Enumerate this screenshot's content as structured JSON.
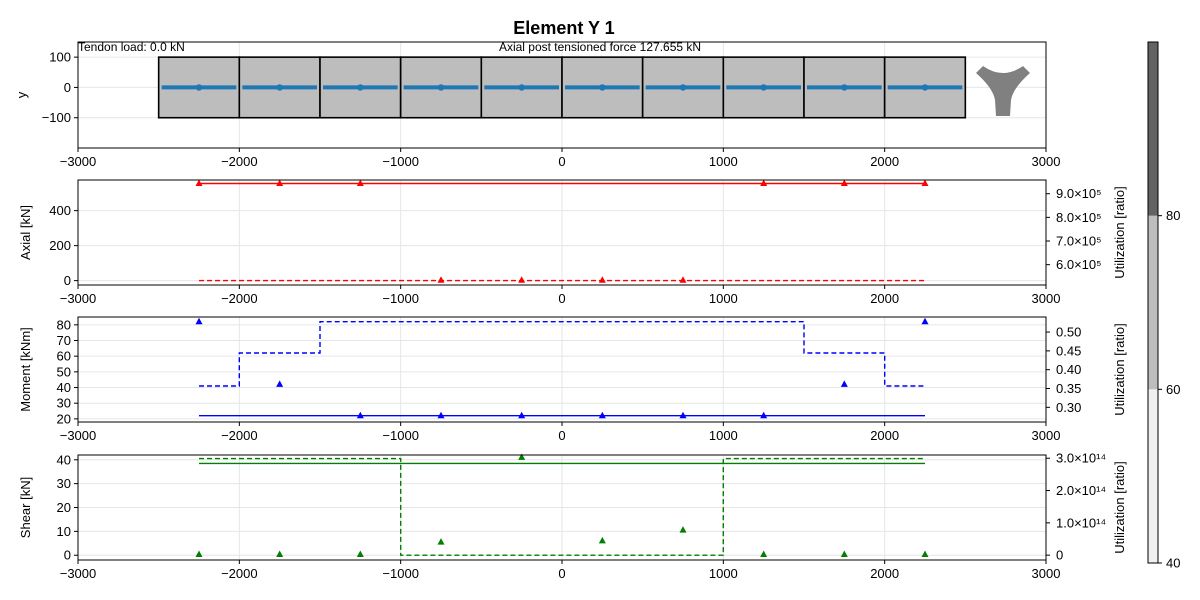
{
  "title": "Element Y 1",
  "annotations": {
    "tendon_load": "Tendon load: 0.0 kN",
    "axial_post_tension": "Axial post tensioned force 127.655 kN"
  },
  "colors": {
    "section_fill": "#bdbdbd",
    "tendon": "#1f77b4",
    "axial": "#ff0000",
    "moment": "#0000ff",
    "shear": "#008000",
    "cross_section": "#808080"
  },
  "chart_data": [
    {
      "id": "section",
      "type": "line",
      "ylabel": "y",
      "xlim": [
        -3000,
        3000
      ],
      "ylim": [
        -200,
        150
      ],
      "xticks": [
        -3000,
        -2000,
        -1000,
        0,
        1000,
        2000,
        3000
      ],
      "xtick_labels": [
        "−3000",
        "−2000",
        "−1000",
        "0",
        "1000",
        "2000",
        "3000"
      ],
      "yticks": [
        100,
        0,
        -100
      ],
      "ytick_labels": [
        "100",
        "0",
        "−100"
      ],
      "segments": [
        [
          -2500,
          -2000
        ],
        [
          -2000,
          -1500
        ],
        [
          -1500,
          -1000
        ],
        [
          -1000,
          -500
        ],
        [
          -500,
          0
        ],
        [
          0,
          500
        ],
        [
          500,
          1000
        ],
        [
          1000,
          1500
        ],
        [
          1500,
          2000
        ],
        [
          2000,
          2500
        ]
      ],
      "segment_ybounds": [
        -100,
        100
      ],
      "tendon": {
        "x": [
          -2250,
          -1750,
          -1250,
          -750,
          -250,
          250,
          750,
          1250,
          1750,
          2250
        ],
        "y": [
          0,
          0,
          0,
          0,
          0,
          0,
          0,
          0,
          0,
          0
        ]
      }
    },
    {
      "id": "axial",
      "type": "line",
      "ylabel": "Axial [kN]",
      "y2label": "Utilization [ratio]",
      "xlim": [
        -3000,
        3000
      ],
      "ylim": [
        -25,
        575
      ],
      "xticks": [
        -3000,
        -2000,
        -1000,
        0,
        1000,
        2000,
        3000
      ],
      "xtick_labels": [
        "−3000",
        "−2000",
        "−1000",
        "0",
        "1000",
        "2000",
        "3000"
      ],
      "yticks": [
        0,
        200,
        400
      ],
      "ytick_labels": [
        "0",
        "200",
        "400"
      ],
      "y2lim": [
        514000,
        958000
      ],
      "y2ticks": [
        600000,
        700000,
        800000,
        900000
      ],
      "y2tick_labels": [
        "6.0×10⁵",
        "7.0×10⁵",
        "8.0×10⁵",
        "9.0×10⁵"
      ],
      "series": [
        {
          "style": "solid",
          "x": [
            -2250,
            2250
          ],
          "y": [
            555,
            555
          ]
        },
        {
          "style": "dashed",
          "x": [
            -2250,
            2250
          ],
          "y": [
            0,
            0
          ]
        }
      ],
      "markers": [
        {
          "x": -2250,
          "y": 555
        },
        {
          "x": -1750,
          "y": 555
        },
        {
          "x": -1250,
          "y": 555
        },
        {
          "x": 1250,
          "y": 555
        },
        {
          "x": 1750,
          "y": 555
        },
        {
          "x": 2250,
          "y": 555
        },
        {
          "x": -750,
          "y": 2
        },
        {
          "x": -250,
          "y": 2
        },
        {
          "x": 250,
          "y": 2
        },
        {
          "x": 750,
          "y": 2
        }
      ]
    },
    {
      "id": "moment",
      "type": "line",
      "ylabel": "Moment [kNm]",
      "y2label": "Utilization [ratio]",
      "xlim": [
        -3000,
        3000
      ],
      "ylim": [
        18,
        85
      ],
      "xticks": [
        -3000,
        -2000,
        -1000,
        0,
        1000,
        2000,
        3000
      ],
      "xtick_labels": [
        "−3000",
        "−2000",
        "−1000",
        "0",
        "1000",
        "2000",
        "3000"
      ],
      "yticks": [
        20,
        30,
        40,
        50,
        60,
        70,
        80
      ],
      "ytick_labels": [
        "20",
        "30",
        "40",
        "50",
        "60",
        "70",
        "80"
      ],
      "y2lim": [
        0.261,
        0.54
      ],
      "y2ticks": [
        0.3,
        0.35,
        0.4,
        0.45,
        0.5
      ],
      "y2tick_labels": [
        "0.30",
        "0.35",
        "0.40",
        "0.45",
        "0.50"
      ],
      "series": [
        {
          "style": "solid",
          "x": [
            -2250,
            2250
          ],
          "y": [
            22,
            22
          ]
        },
        {
          "style": "dashed",
          "x": [
            -2250,
            -2000,
            -2000,
            -1500,
            -1500,
            1500,
            1500,
            2000,
            2000,
            2250
          ],
          "y": [
            41,
            41,
            62,
            62,
            82,
            82,
            62,
            62,
            41,
            41
          ]
        }
      ],
      "markers": [
        {
          "x": -2250,
          "y": 82
        },
        {
          "x": 2250,
          "y": 82
        },
        {
          "x": -1750,
          "y": 42
        },
        {
          "x": 1750,
          "y": 42
        },
        {
          "x": -1250,
          "y": 22
        },
        {
          "x": -750,
          "y": 22
        },
        {
          "x": -250,
          "y": 22
        },
        {
          "x": 250,
          "y": 22
        },
        {
          "x": 750,
          "y": 22
        },
        {
          "x": 1250,
          "y": 22
        }
      ]
    },
    {
      "id": "shear",
      "type": "line",
      "ylabel": "Shear [kN]",
      "y2label": "Utilization [ratio]",
      "xlim": [
        -3000,
        3000
      ],
      "ylim": [
        -2,
        42
      ],
      "xticks": [
        -3000,
        -2000,
        -1000,
        0,
        1000,
        2000,
        3000
      ],
      "xtick_labels": [
        "−3000",
        "−2000",
        "−1000",
        "0",
        "1000",
        "2000",
        "3000"
      ],
      "yticks": [
        0,
        10,
        20,
        30,
        40
      ],
      "ytick_labels": [
        "0",
        "10",
        "20",
        "30",
        "40"
      ],
      "y2lim": [
        -15000000000000.0,
        310000000000000.0
      ],
      "y2ticks": [
        0,
        100000000000000.0,
        200000000000000.0,
        300000000000000.0
      ],
      "y2tick_labels": [
        "0",
        "1.0×10¹⁴",
        "2.0×10¹⁴",
        "3.0×10¹⁴"
      ],
      "series": [
        {
          "style": "solid",
          "x": [
            -2250,
            2250
          ],
          "y": [
            38.5,
            38.5
          ]
        },
        {
          "style": "dashed",
          "x": [
            -2250,
            -1000,
            -1000,
            1000,
            1000,
            2250
          ],
          "y": [
            40.5,
            40.5,
            0,
            0,
            40.5,
            40.5
          ]
        }
      ],
      "markers": [
        {
          "x": -2250,
          "y": 0.3
        },
        {
          "x": -1750,
          "y": 0.3
        },
        {
          "x": -1250,
          "y": 0.3
        },
        {
          "x": -750,
          "y": 5.5
        },
        {
          "x": -250,
          "y": 41
        },
        {
          "x": 250,
          "y": 6
        },
        {
          "x": 750,
          "y": 10.5
        },
        {
          "x": 1250,
          "y": 0.3
        },
        {
          "x": 1750,
          "y": 0.3
        },
        {
          "x": 2250,
          "y": 0.3
        }
      ]
    }
  ],
  "colorbar": {
    "range": [
      40,
      100
    ],
    "ticks": [
      40,
      60,
      80
    ],
    "tick_labels": [
      "40",
      "60",
      "80"
    ],
    "bands": [
      {
        "from": 40,
        "to": 60,
        "color": "#f0f0f0"
      },
      {
        "from": 60,
        "to": 80,
        "color": "#bdbdbd"
      },
      {
        "from": 80,
        "to": 100,
        "color": "#636363"
      }
    ]
  }
}
